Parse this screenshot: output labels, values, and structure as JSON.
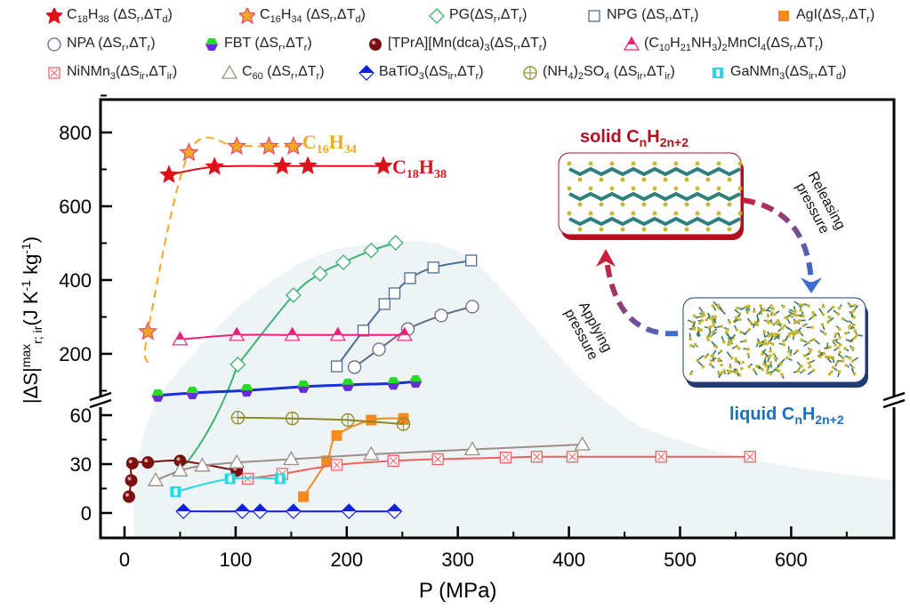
{
  "chart_data": {
    "type": "scatter",
    "xlabel": "P (MPa)",
    "ylabel": "|ΔS|^{max}_{r; ir}(J K^{-1} kg^{-1})",
    "xlim": [
      0,
      690
    ],
    "x_ticks": [
      "0",
      "100",
      "200",
      "300",
      "400",
      "500",
      "600"
    ],
    "y_axis_broken": true,
    "ylim_upper": [
      100,
      880
    ],
    "ylim_lower": [
      -12,
      70
    ],
    "y_ticks_upper": [
      "200",
      "400",
      "600",
      "800"
    ],
    "y_ticks_lower": [
      "0",
      "30",
      "60"
    ],
    "legend_position": "top",
    "series": [
      {
        "name": "C_{18}H_{38} (ΔS_{r},ΔT_{d})",
        "marker": "star",
        "color": "#e0101a",
        "line": "solid",
        "axis": "upper",
        "points": [
          [
            40,
            685
          ],
          [
            81,
            707
          ],
          [
            142,
            709
          ],
          [
            165,
            709
          ],
          [
            233,
            709
          ]
        ],
        "annotation": "C_{18}H_{38}"
      },
      {
        "name": "C_{16}H_{34} (ΔS_{r},ΔT_{d})",
        "marker": "star-open",
        "color": "#f5a623",
        "line": "dashed",
        "axis": "upper",
        "points": [
          [
            21,
            260
          ],
          [
            58,
            745
          ],
          [
            101,
            762
          ],
          [
            130,
            762
          ],
          [
            152,
            762
          ]
        ],
        "line_start": [
          21,
          176
        ],
        "annotation": "C_{16}H_{34}"
      },
      {
        "name": "PG(ΔS_{r},ΔT_{r})",
        "marker": "diamond-open",
        "color": "#3cb371",
        "line": "solid",
        "axis": "upper",
        "points": [
          [
            102,
            171
          ],
          [
            152,
            359
          ],
          [
            176,
            417
          ],
          [
            197,
            448
          ],
          [
            222,
            480
          ],
          [
            244,
            501
          ]
        ],
        "line_tail_lower": [
          55,
          30
        ]
      },
      {
        "name": "NPG (ΔS_{r},ΔT_{r})",
        "marker": "square-open",
        "color": "#4a6f95",
        "line": "solid",
        "axis": "upper",
        "points": [
          [
            191,
            166
          ],
          [
            215,
            263
          ],
          [
            234,
            335
          ],
          [
            243,
            364
          ],
          [
            257,
            405
          ],
          [
            278,
            434
          ],
          [
            312,
            453
          ]
        ]
      },
      {
        "name": "AgI(ΔS_{r},ΔT_{r})",
        "marker": "square",
        "color": "#f7891e",
        "line": "solid",
        "axis": "lower",
        "points": [
          [
            161,
            10
          ],
          [
            182,
            32
          ],
          [
            191,
            47.5
          ],
          [
            222,
            57
          ],
          [
            251,
            58
          ]
        ]
      },
      {
        "name": "NPA (ΔS_{r},ΔT_{r})",
        "marker": "circle-open",
        "color": "#6a6a8a",
        "line": "solid",
        "axis": "upper",
        "points": [
          [
            207,
            164
          ],
          [
            229,
            212
          ],
          [
            255,
            267
          ],
          [
            285,
            304
          ],
          [
            313,
            328
          ]
        ]
      },
      {
        "name": "FBT (ΔS_{r},ΔT_{r})",
        "marker": "hexagon-half",
        "color": "#1a2ed8",
        "line": "solid",
        "axis": "upper",
        "points": [
          [
            30,
            87
          ],
          [
            61,
            94
          ],
          [
            110,
            101
          ],
          [
            161,
            111
          ],
          [
            201,
            116
          ],
          [
            242,
            120
          ],
          [
            262,
            125
          ]
        ]
      },
      {
        "name": "[TPrA][Mn(dca)_{3}(ΔS_{r},ΔT_{r})",
        "marker": "sphere",
        "color": "#7a1010",
        "line": "solid",
        "axis": "lower",
        "points": [
          [
            4,
            10
          ],
          [
            6,
            20
          ],
          [
            7,
            30.5
          ],
          [
            21,
            31
          ],
          [
            50,
            32
          ],
          [
            101,
            26
          ]
        ]
      },
      {
        "name": "(C_{10}H_{21}NH_{3})_{2}MnCl_{4}(ΔS_{r},ΔT_{r})",
        "marker": "triangle-half",
        "color": "#e8207a",
        "line": "solid",
        "axis": "upper",
        "points": [
          [
            50,
            239
          ],
          [
            101,
            251
          ],
          [
            151,
            251
          ],
          [
            192,
            251
          ],
          [
            252,
            251
          ]
        ]
      },
      {
        "name": "NiNMn_{3}(ΔS_{ir},ΔT_{ir})",
        "marker": "square-cross",
        "color": "#f06060",
        "line": "solid",
        "axis": "lower",
        "points": [
          [
            111,
            21
          ],
          [
            142,
            24
          ],
          [
            191,
            29.5
          ],
          [
            242,
            32
          ],
          [
            282,
            33
          ],
          [
            343,
            34
          ],
          [
            371,
            34.5
          ],
          [
            403,
            34.5
          ],
          [
            483,
            34.5
          ],
          [
            563,
            34.5
          ]
        ]
      },
      {
        "name": "C_{60} (ΔS_{r},ΔT_{r})",
        "marker": "triangle-open",
        "color": "#9a8f88",
        "line": "solid",
        "axis": "lower",
        "points": [
          [
            28,
            20
          ],
          [
            50,
            26
          ],
          [
            70,
            29
          ],
          [
            101,
            31
          ],
          [
            150,
            33
          ],
          [
            222,
            36
          ],
          [
            313,
            39
          ],
          [
            412,
            42
          ]
        ]
      },
      {
        "name": "BaTiO_{3}(ΔS_{ir},ΔT_{r})",
        "marker": "diamond-half",
        "color": "#1020e0",
        "line": "solid",
        "axis": "lower",
        "points": [
          [
            53,
            1
          ],
          [
            106,
            1
          ],
          [
            122,
            1
          ],
          [
            152,
            1
          ],
          [
            202,
            1
          ],
          [
            243,
            1
          ]
        ]
      },
      {
        "name": "(NH_{4})_{2}SO_{4} (ΔS_{ir},ΔT_{ir})",
        "marker": "circle-plus",
        "color": "#8a8a20",
        "line": "solid",
        "axis": "lower",
        "points": [
          [
            102,
            58.5
          ],
          [
            151,
            58
          ],
          [
            201,
            57
          ],
          [
            251,
            54.5
          ]
        ]
      },
      {
        "name": "GaNMn_{3}(ΔS_{ir},ΔT_{d})",
        "marker": "square-half",
        "color": "#20d8e8",
        "line": "solid",
        "axis": "lower",
        "points": [
          [
            46,
            13
          ],
          [
            95,
            21
          ],
          [
            140,
            21
          ]
        ]
      }
    ]
  },
  "inset": {
    "solid_label": "solid C_{n}H_{2n+2}",
    "liquid_label": "liquid C_{n}H_{2n+2}",
    "releasing_line1": "Releasing",
    "releasing_line2": "pressure",
    "applying_line1": "Applying",
    "applying_line2": "pressure",
    "solid_color": "#b01020",
    "liquid_color": "#1a6fc0"
  }
}
